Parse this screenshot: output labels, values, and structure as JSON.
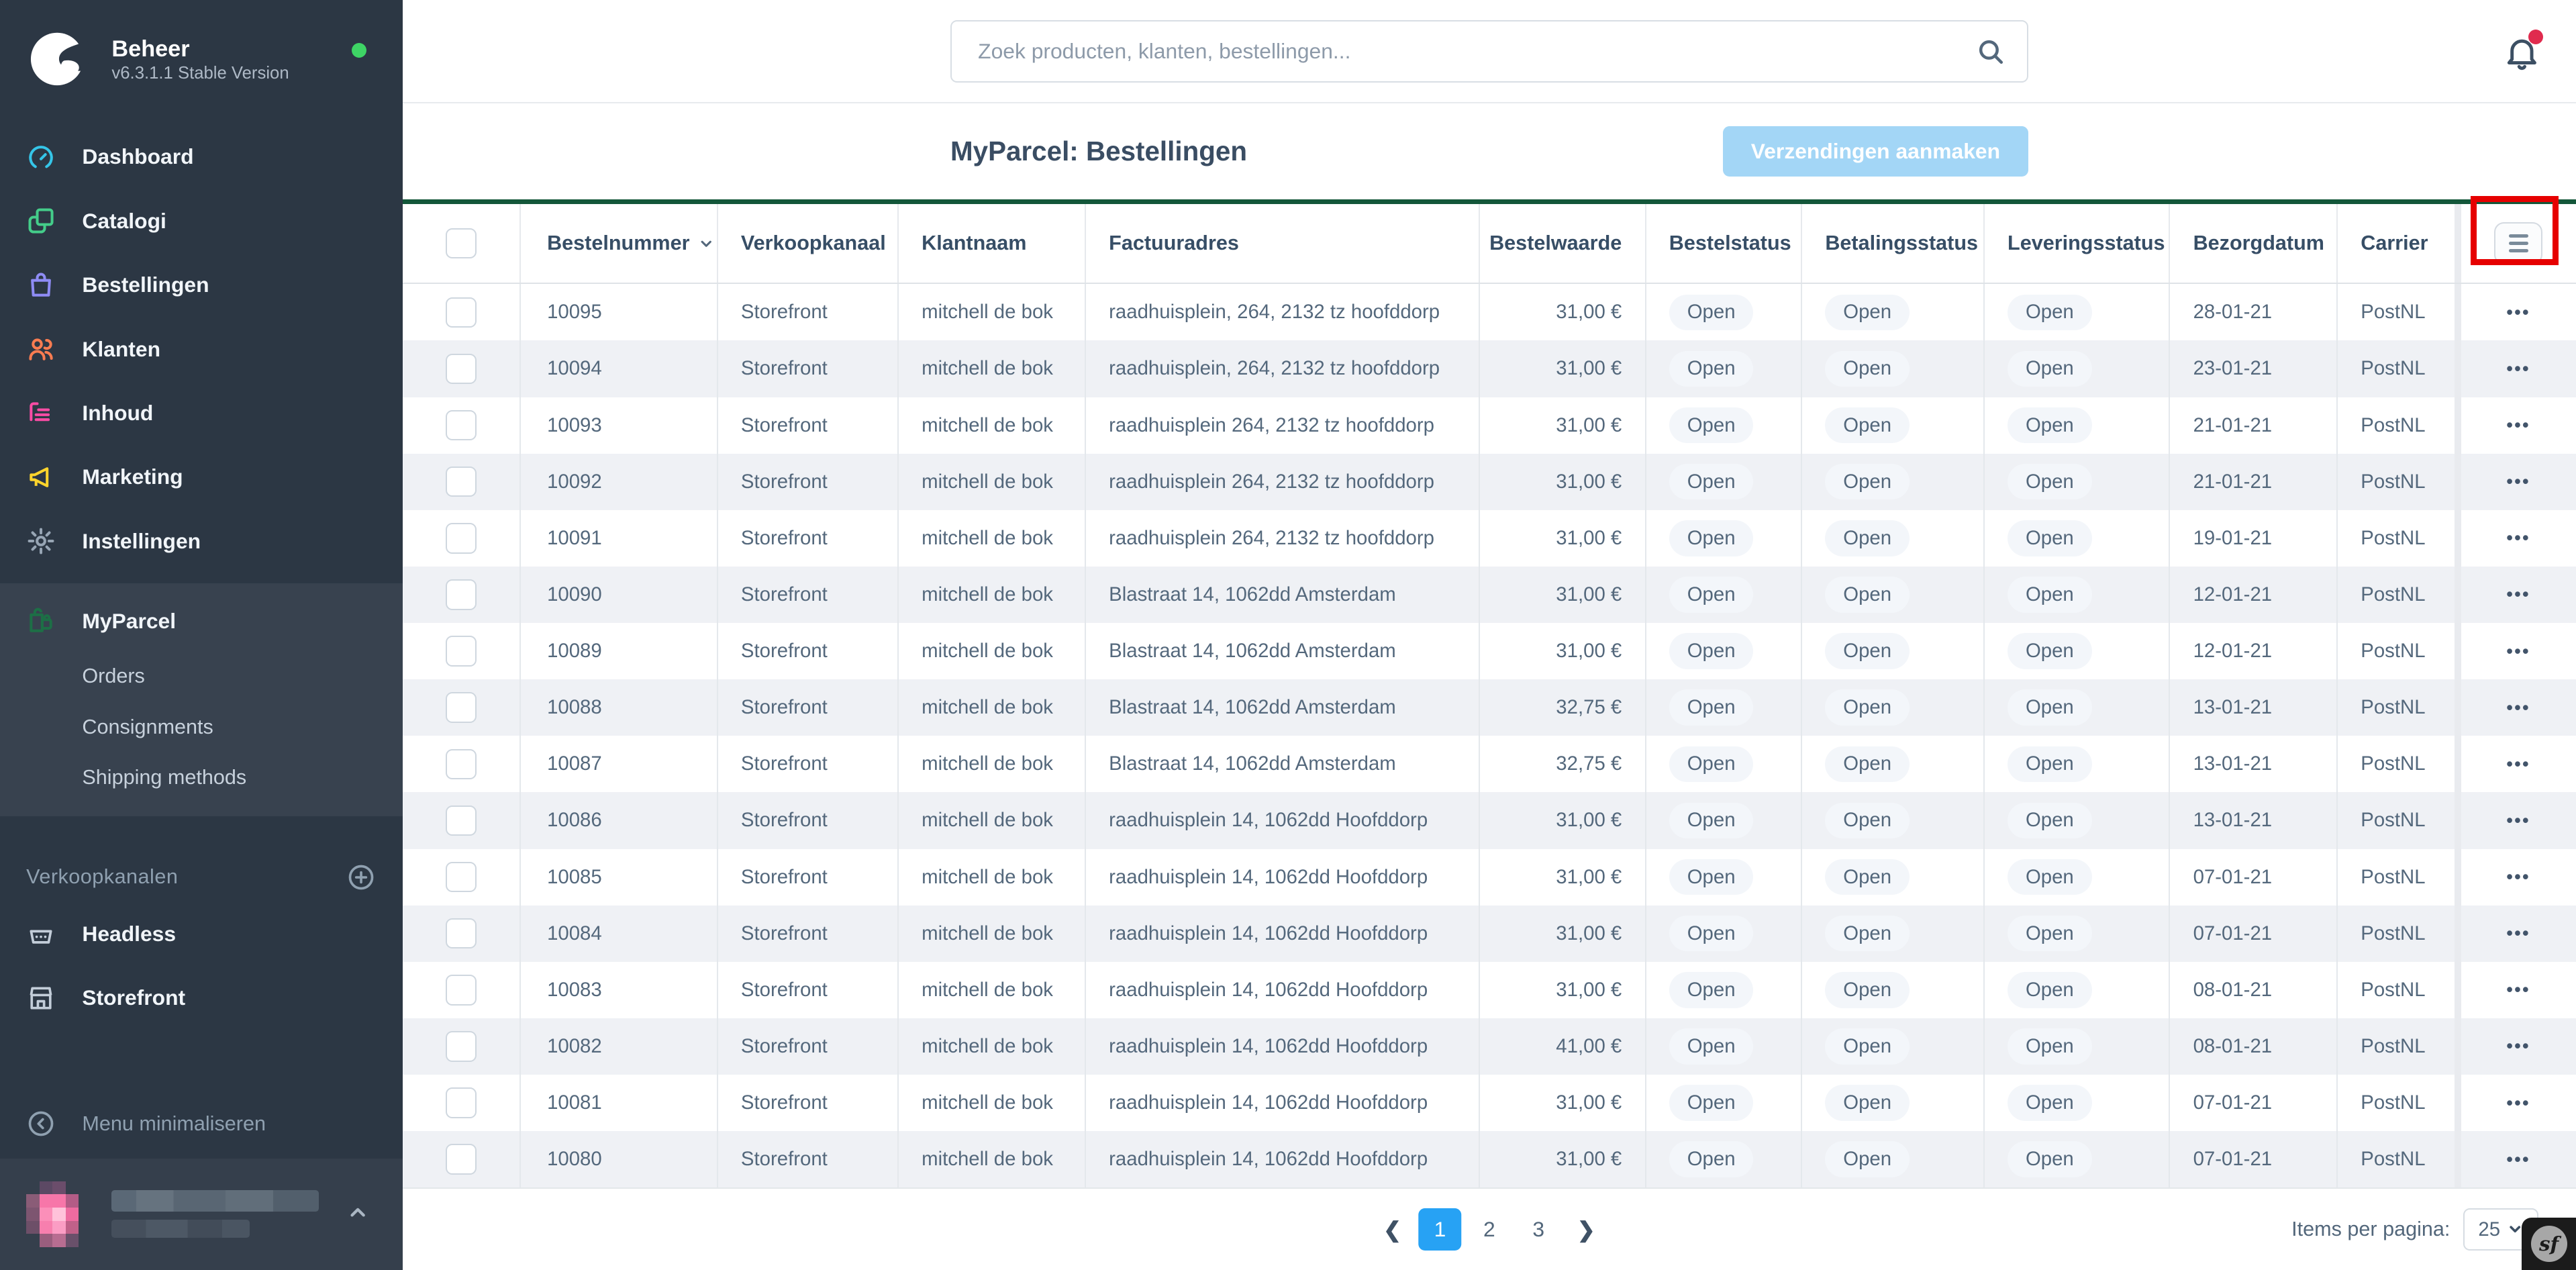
{
  "app": {
    "accent_blue": "#27a2f4",
    "table_top_border_green": "#14573a",
    "annotation_red": "#e60000"
  },
  "sidebar": {
    "logo_title": "Beheer",
    "logo_subtitle": "v6.3.1.1 Stable Version",
    "status_dot_color": "#3ed465",
    "items": [
      {
        "label": "Dashboard",
        "icon": "gauge-icon",
        "color": "#35c5e8"
      },
      {
        "label": "Catalogi",
        "icon": "catalog-icon",
        "color": "#44cd8a"
      },
      {
        "label": "Bestellingen",
        "icon": "shopping-bag-icon",
        "color": "#8f8cf5"
      },
      {
        "label": "Klanten",
        "icon": "users-icon",
        "color": "#fa7c51"
      },
      {
        "label": "Inhoud",
        "icon": "content-icon",
        "color": "#fb4ca5"
      },
      {
        "label": "Marketing",
        "icon": "megaphone-icon",
        "color": "#fed42c"
      },
      {
        "label": "Instellingen",
        "icon": "gear-icon",
        "color": "#97a5b4"
      }
    ],
    "myparcel": {
      "label": "MyParcel",
      "icon": "parcel-icon",
      "color": "#1d6f46",
      "children": [
        "Orders",
        "Consignments",
        "Shipping methods"
      ]
    },
    "sales_channels": {
      "header": "Verkoopkanalen",
      "add_icon": "plus-circle-icon",
      "items": [
        {
          "label": "Headless",
          "icon": "basket-icon"
        },
        {
          "label": "Storefront",
          "icon": "storefront-icon"
        }
      ]
    },
    "collapse_label": "Menu minimaliseren"
  },
  "topbar": {
    "search_placeholder": "Zoek producten, klanten, bestellingen...",
    "icons": [
      "search-icon",
      "bell-icon"
    ]
  },
  "smartbar": {
    "title": "MyParcel: Bestellingen",
    "action_button": "Verzendingen aanmaken"
  },
  "table": {
    "columns": [
      "Bestelnummer",
      "Verkoopkanaal",
      "Klantnaam",
      "Factuuradres",
      "Bestelwaarde",
      "Bestelstatus",
      "Betalingsstatus",
      "Leveringsstatus",
      "Bezorgdatum",
      "Carrier"
    ],
    "sorted_column": "Bestelnummer",
    "rows": [
      {
        "number": "10095",
        "channel": "Storefront",
        "customer": "mitchell de bok",
        "address": "raadhuisplein, 264, 2132 tz hoofddorp",
        "value": "31,00 €",
        "order_status": "Open",
        "payment_status": "Open",
        "delivery_status": "Open",
        "date": "28-01-21",
        "carrier": "PostNL"
      },
      {
        "number": "10094",
        "channel": "Storefront",
        "customer": "mitchell de bok",
        "address": "raadhuisplein, 264, 2132 tz hoofddorp",
        "value": "31,00 €",
        "order_status": "Open",
        "payment_status": "Open",
        "delivery_status": "Open",
        "date": "23-01-21",
        "carrier": "PostNL"
      },
      {
        "number": "10093",
        "channel": "Storefront",
        "customer": "mitchell de bok",
        "address": "raadhuisplein 264, 2132 tz hoofddorp",
        "value": "31,00 €",
        "order_status": "Open",
        "payment_status": "Open",
        "delivery_status": "Open",
        "date": "21-01-21",
        "carrier": "PostNL"
      },
      {
        "number": "10092",
        "channel": "Storefront",
        "customer": "mitchell de bok",
        "address": "raadhuisplein 264, 2132 tz hoofddorp",
        "value": "31,00 €",
        "order_status": "Open",
        "payment_status": "Open",
        "delivery_status": "Open",
        "date": "21-01-21",
        "carrier": "PostNL"
      },
      {
        "number": "10091",
        "channel": "Storefront",
        "customer": "mitchell de bok",
        "address": "raadhuisplein 264, 2132 tz hoofddorp",
        "value": "31,00 €",
        "order_status": "Open",
        "payment_status": "Open",
        "delivery_status": "Open",
        "date": "19-01-21",
        "carrier": "PostNL"
      },
      {
        "number": "10090",
        "channel": "Storefront",
        "customer": "mitchell de bok",
        "address": "Blastraat 14, 1062dd Amsterdam",
        "value": "31,00 €",
        "order_status": "Open",
        "payment_status": "Open",
        "delivery_status": "Open",
        "date": "12-01-21",
        "carrier": "PostNL"
      },
      {
        "number": "10089",
        "channel": "Storefront",
        "customer": "mitchell de bok",
        "address": "Blastraat 14, 1062dd Amsterdam",
        "value": "31,00 €",
        "order_status": "Open",
        "payment_status": "Open",
        "delivery_status": "Open",
        "date": "12-01-21",
        "carrier": "PostNL"
      },
      {
        "number": "10088",
        "channel": "Storefront",
        "customer": "mitchell de bok",
        "address": "Blastraat 14, 1062dd Amsterdam",
        "value": "32,75 €",
        "order_status": "Open",
        "payment_status": "Open",
        "delivery_status": "Open",
        "date": "13-01-21",
        "carrier": "PostNL"
      },
      {
        "number": "10087",
        "channel": "Storefront",
        "customer": "mitchell de bok",
        "address": "Blastraat 14, 1062dd Amsterdam",
        "value": "32,75 €",
        "order_status": "Open",
        "payment_status": "Open",
        "delivery_status": "Open",
        "date": "13-01-21",
        "carrier": "PostNL"
      },
      {
        "number": "10086",
        "channel": "Storefront",
        "customer": "mitchell de bok",
        "address": "raadhuisplein 14, 1062dd Hoofddorp",
        "value": "31,00 €",
        "order_status": "Open",
        "payment_status": "Open",
        "delivery_status": "Open",
        "date": "13-01-21",
        "carrier": "PostNL"
      },
      {
        "number": "10085",
        "channel": "Storefront",
        "customer": "mitchell de bok",
        "address": "raadhuisplein 14, 1062dd Hoofddorp",
        "value": "31,00 €",
        "order_status": "Open",
        "payment_status": "Open",
        "delivery_status": "Open",
        "date": "07-01-21",
        "carrier": "PostNL"
      },
      {
        "number": "10084",
        "channel": "Storefront",
        "customer": "mitchell de bok",
        "address": "raadhuisplein 14, 1062dd Hoofddorp",
        "value": "31,00 €",
        "order_status": "Open",
        "payment_status": "Open",
        "delivery_status": "Open",
        "date": "07-01-21",
        "carrier": "PostNL"
      },
      {
        "number": "10083",
        "channel": "Storefront",
        "customer": "mitchell de bok",
        "address": "raadhuisplein 14, 1062dd Hoofddorp",
        "value": "31,00 €",
        "order_status": "Open",
        "payment_status": "Open",
        "delivery_status": "Open",
        "date": "08-01-21",
        "carrier": "PostNL"
      },
      {
        "number": "10082",
        "channel": "Storefront",
        "customer": "mitchell de bok",
        "address": "raadhuisplein 14, 1062dd Hoofddorp",
        "value": "41,00 €",
        "order_status": "Open",
        "payment_status": "Open",
        "delivery_status": "Open",
        "date": "08-01-21",
        "carrier": "PostNL"
      },
      {
        "number": "10081",
        "channel": "Storefront",
        "customer": "mitchell de bok",
        "address": "raadhuisplein 14, 1062dd Hoofddorp",
        "value": "31,00 €",
        "order_status": "Open",
        "payment_status": "Open",
        "delivery_status": "Open",
        "date": "07-01-21",
        "carrier": "PostNL"
      },
      {
        "number": "10080",
        "channel": "Storefront",
        "customer": "mitchell de bok",
        "address": "raadhuisplein 14, 1062dd Hoofddorp",
        "value": "31,00 €",
        "order_status": "Open",
        "payment_status": "Open",
        "delivery_status": "Open",
        "date": "07-01-21",
        "carrier": "PostNL"
      }
    ]
  },
  "pagination": {
    "pages": [
      "1",
      "2",
      "3"
    ],
    "active_page": "1",
    "items_per_page_label": "Items per pagina:",
    "items_per_page_value": "25"
  },
  "symfony_badge": "sf"
}
